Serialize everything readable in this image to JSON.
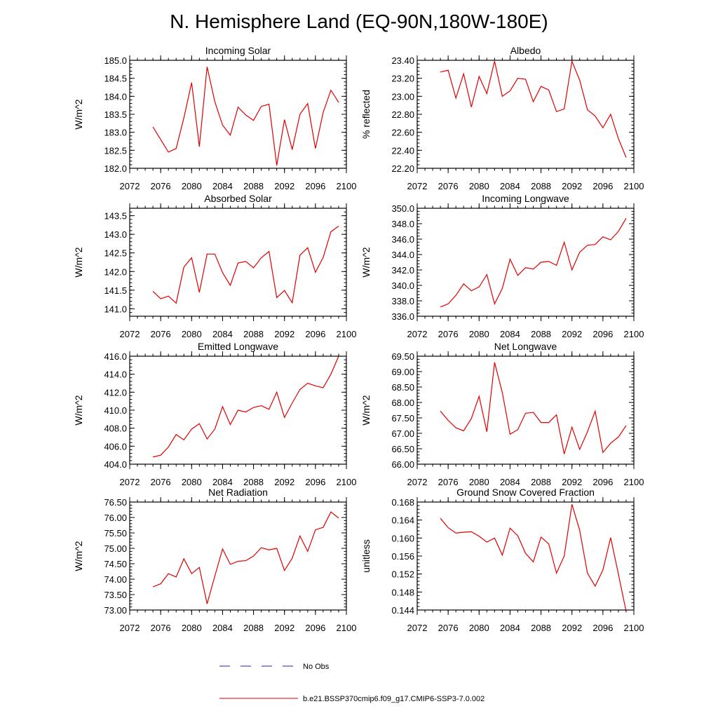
{
  "title": "N. Hemisphere Land (EQ-90N,180W-180E)",
  "legend": [
    {
      "label": "No Obs",
      "color": "#2020c0",
      "dash": true
    },
    {
      "label": "b.e21.BSSP370cmip6.f09_g17.CMIP6-SSP3-7.0.002",
      "color": "#e00000",
      "dash": false
    }
  ],
  "chart_data": [
    {
      "type": "line",
      "title": "Incoming Solar",
      "ylabel": "W/m^2",
      "xlim": [
        2072,
        2100
      ],
      "xticks": [
        "2072",
        "2076",
        "2080",
        "2084",
        "2088",
        "2092",
        "2096",
        "2100"
      ],
      "ylim": [
        182.0,
        185.0
      ],
      "yticks": [
        "182.0",
        "182.5",
        "183.0",
        "183.5",
        "184.0",
        "184.5",
        "185.0"
      ],
      "x": [
        2075,
        2076,
        2077,
        2078,
        2079,
        2080,
        2081,
        2082,
        2083,
        2084,
        2085,
        2086,
        2087,
        2088,
        2089,
        2090,
        2091,
        2092,
        2093,
        2094,
        2095,
        2096,
        2097,
        2098,
        2099
      ],
      "series": [
        {
          "values": [
            183.15,
            182.8,
            182.45,
            182.55,
            183.4,
            184.38,
            182.6,
            184.82,
            183.85,
            183.2,
            182.92,
            183.7,
            183.48,
            183.33,
            183.72,
            183.78,
            182.08,
            183.35,
            182.52,
            183.5,
            183.8,
            182.55,
            183.55,
            184.17,
            183.83
          ]
        }
      ],
      "color": "#e00000"
    },
    {
      "type": "line",
      "title": "Albedo",
      "ylabel": "% reflected",
      "xlim": [
        2072,
        2100
      ],
      "xticks": [
        "2072",
        "2076",
        "2080",
        "2084",
        "2088",
        "2092",
        "2096",
        "2100"
      ],
      "ylim": [
        22.2,
        23.4
      ],
      "yticks": [
        "22.20",
        "22.40",
        "22.60",
        "22.80",
        "23.00",
        "23.20",
        "23.40"
      ],
      "x": [
        2075,
        2076,
        2077,
        2078,
        2079,
        2080,
        2081,
        2082,
        2083,
        2084,
        2085,
        2086,
        2087,
        2088,
        2089,
        2090,
        2091,
        2092,
        2093,
        2094,
        2095,
        2096,
        2097,
        2098,
        2099
      ],
      "series": [
        {
          "values": [
            23.27,
            23.29,
            22.98,
            23.25,
            22.88,
            23.22,
            23.03,
            23.39,
            23.0,
            23.06,
            23.2,
            23.19,
            22.94,
            23.11,
            23.07,
            22.83,
            22.86,
            23.39,
            23.18,
            22.85,
            22.78,
            22.65,
            22.8,
            22.53,
            22.32
          ]
        }
      ],
      "color": "#e00000"
    },
    {
      "type": "line",
      "title": "Absorbed Solar",
      "ylabel": "W/m^2",
      "xlim": [
        2072,
        2100
      ],
      "xticks": [
        "2072",
        "2076",
        "2080",
        "2084",
        "2088",
        "2092",
        "2096",
        "2100"
      ],
      "ylim": [
        140.8,
        143.7
      ],
      "yticks": [
        "141.0",
        "141.5",
        "142.0",
        "142.5",
        "143.0",
        "143.5"
      ],
      "x": [
        2075,
        2076,
        2077,
        2078,
        2079,
        2080,
        2081,
        2082,
        2083,
        2084,
        2085,
        2086,
        2087,
        2088,
        2089,
        2090,
        2091,
        2092,
        2093,
        2094,
        2095,
        2096,
        2097,
        2098,
        2099
      ],
      "series": [
        {
          "values": [
            141.47,
            141.27,
            141.34,
            141.15,
            142.12,
            142.37,
            141.44,
            142.47,
            142.47,
            141.97,
            141.63,
            142.23,
            142.27,
            142.1,
            142.37,
            142.54,
            141.3,
            141.49,
            141.16,
            142.44,
            142.64,
            141.98,
            142.38,
            143.07,
            143.22
          ]
        }
      ],
      "color": "#e00000"
    },
    {
      "type": "line",
      "title": "Incoming Longwave",
      "ylabel": "W/m^2",
      "xlim": [
        2072,
        2100
      ],
      "xticks": [
        "2072",
        "2076",
        "2080",
        "2084",
        "2088",
        "2092",
        "2096",
        "2100"
      ],
      "ylim": [
        336.0,
        350.0
      ],
      "yticks": [
        "336.0",
        "338.0",
        "340.0",
        "342.0",
        "344.0",
        "346.0",
        "348.0",
        "350.0"
      ],
      "x": [
        2075,
        2076,
        2077,
        2078,
        2079,
        2080,
        2081,
        2082,
        2083,
        2084,
        2085,
        2086,
        2087,
        2088,
        2089,
        2090,
        2091,
        2092,
        2093,
        2094,
        2095,
        2096,
        2097,
        2098,
        2099
      ],
      "series": [
        {
          "values": [
            337.2,
            337.6,
            338.7,
            340.2,
            339.3,
            339.8,
            341.4,
            337.6,
            339.6,
            343.4,
            341.3,
            342.3,
            342.1,
            343.0,
            343.1,
            342.6,
            345.6,
            342.0,
            344.3,
            345.2,
            345.3,
            346.3,
            345.9,
            347.0,
            348.7
          ]
        }
      ],
      "color": "#e00000"
    },
    {
      "type": "line",
      "title": "Emitted Longwave",
      "ylabel": "W/m^2",
      "xlim": [
        2072,
        2100
      ],
      "xticks": [
        "2072",
        "2076",
        "2080",
        "2084",
        "2088",
        "2092",
        "2096",
        "2100"
      ],
      "ylim": [
        404.0,
        416.0
      ],
      "yticks": [
        "404.0",
        "406.0",
        "408.0",
        "410.0",
        "412.0",
        "414.0",
        "416.0"
      ],
      "x": [
        2075,
        2076,
        2077,
        2078,
        2079,
        2080,
        2081,
        2082,
        2083,
        2084,
        2085,
        2086,
        2087,
        2088,
        2089,
        2090,
        2091,
        2092,
        2093,
        2094,
        2095,
        2096,
        2097,
        2098,
        2099
      ],
      "series": [
        {
          "values": [
            404.8,
            405.0,
            405.9,
            407.3,
            406.7,
            407.9,
            408.5,
            406.8,
            407.9,
            410.4,
            408.4,
            410.0,
            409.8,
            410.3,
            410.5,
            410.1,
            412.0,
            409.2,
            410.8,
            412.3,
            413.0,
            412.7,
            412.5,
            414.0,
            416.0
          ]
        }
      ],
      "color": "#e00000"
    },
    {
      "type": "line",
      "title": "Net Longwave",
      "ylabel": "W/m^2",
      "xlim": [
        2072,
        2100
      ],
      "xticks": [
        "2072",
        "2076",
        "2080",
        "2084",
        "2088",
        "2092",
        "2096",
        "2100"
      ],
      "ylim": [
        66.0,
        69.5
      ],
      "yticks": [
        "66.00",
        "66.50",
        "67.00",
        "67.50",
        "68.00",
        "68.50",
        "69.00",
        "69.50"
      ],
      "x": [
        2075,
        2076,
        2077,
        2078,
        2079,
        2080,
        2081,
        2082,
        2083,
        2084,
        2085,
        2086,
        2087,
        2088,
        2089,
        2090,
        2091,
        2092,
        2093,
        2094,
        2095,
        2096,
        2097,
        2098,
        2099
      ],
      "series": [
        {
          "values": [
            67.72,
            67.42,
            67.18,
            67.08,
            67.48,
            68.2,
            67.05,
            69.3,
            68.32,
            66.97,
            67.12,
            67.65,
            67.68,
            67.35,
            67.35,
            67.6,
            66.33,
            67.2,
            66.48,
            67.05,
            67.72,
            66.38,
            66.68,
            66.88,
            67.25
          ]
        }
      ],
      "color": "#e00000"
    },
    {
      "type": "line",
      "title": "Net Radiation",
      "ylabel": "W/m^2",
      "xlim": [
        2072,
        2100
      ],
      "xticks": [
        "2072",
        "2076",
        "2080",
        "2084",
        "2088",
        "2092",
        "2096",
        "2100"
      ],
      "ylim": [
        73.0,
        76.5
      ],
      "yticks": [
        "73.00",
        "73.50",
        "74.00",
        "74.50",
        "75.00",
        "75.50",
        "76.00",
        "76.50"
      ],
      "x": [
        2075,
        2076,
        2077,
        2078,
        2079,
        2080,
        2081,
        2082,
        2083,
        2084,
        2085,
        2086,
        2087,
        2088,
        2089,
        2090,
        2091,
        2092,
        2093,
        2094,
        2095,
        2096,
        2097,
        2098,
        2099
      ],
      "series": [
        {
          "values": [
            73.75,
            73.85,
            74.18,
            74.07,
            74.66,
            74.18,
            74.38,
            73.2,
            74.1,
            74.98,
            74.48,
            74.58,
            74.6,
            74.75,
            75.02,
            74.95,
            75.0,
            74.28,
            74.68,
            75.4,
            74.9,
            75.6,
            75.68,
            76.18,
            75.98
          ]
        }
      ],
      "color": "#e00000"
    },
    {
      "type": "line",
      "title": "Ground Snow Covered Fraction",
      "ylabel": "unitless",
      "xlim": [
        2072,
        2100
      ],
      "xticks": [
        "2072",
        "2076",
        "2080",
        "2084",
        "2088",
        "2092",
        "2096",
        "2100"
      ],
      "ylim": [
        0.144,
        0.168
      ],
      "yticks": [
        "0.144",
        "0.148",
        "0.152",
        "0.156",
        "0.160",
        "0.164",
        "0.168"
      ],
      "x": [
        2075,
        2076,
        2077,
        2078,
        2079,
        2080,
        2081,
        2082,
        2083,
        2084,
        2085,
        2086,
        2087,
        2088,
        2089,
        2090,
        2091,
        2092,
        2093,
        2094,
        2095,
        2096,
        2097,
        2098,
        2099
      ],
      "series": [
        {
          "values": [
            0.1644,
            0.1623,
            0.1611,
            0.1613,
            0.1614,
            0.1604,
            0.1591,
            0.16,
            0.1562,
            0.1622,
            0.1605,
            0.1566,
            0.1547,
            0.1602,
            0.1587,
            0.1522,
            0.156,
            0.1675,
            0.1617,
            0.1522,
            0.1493,
            0.1529,
            0.1601,
            0.152,
            0.1437
          ]
        }
      ],
      "color": "#e00000"
    }
  ]
}
